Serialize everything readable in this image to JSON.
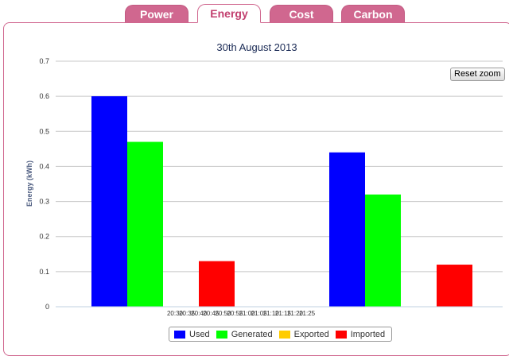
{
  "tabs": [
    {
      "label": "Power",
      "active": false
    },
    {
      "label": "Energy",
      "active": true
    },
    {
      "label": "Cost",
      "active": false
    },
    {
      "label": "Carbon",
      "active": false
    }
  ],
  "reset_zoom_label": "Reset zoom",
  "colors": {
    "tab": "#d0678f",
    "tab_active_text": "#c2406f"
  },
  "chart_data": {
    "type": "bar",
    "title": "30th August 2013",
    "xlabel": "",
    "ylabel": "Energy (kWh)",
    "ylim": [
      0,
      0.7
    ],
    "yticks": [
      "0",
      "0.1",
      "0.2",
      "0.3",
      "0.4",
      "0.5",
      "0.6",
      "0.7"
    ],
    "xticks": [
      "20:30",
      "20:35",
      "20:40",
      "20:45",
      "20:50",
      "20:55",
      "21:00",
      "21:05",
      "21:10",
      "21:15",
      "21:20",
      "21:25"
    ],
    "grid": true,
    "legend_position": "bottom-center",
    "categories": [
      "20:30",
      "21:15"
    ],
    "series": [
      {
        "name": "Used",
        "color": "#0000ff",
        "values": [
          0.6,
          0.44
        ]
      },
      {
        "name": "Generated",
        "color": "#00ff00",
        "values": [
          0.47,
          0.32
        ]
      },
      {
        "name": "Exported",
        "color": "#ffcc00",
        "values": [
          0,
          0
        ]
      },
      {
        "name": "Imported",
        "color": "#ff0000",
        "values": [
          0.13,
          0.12
        ]
      }
    ]
  }
}
